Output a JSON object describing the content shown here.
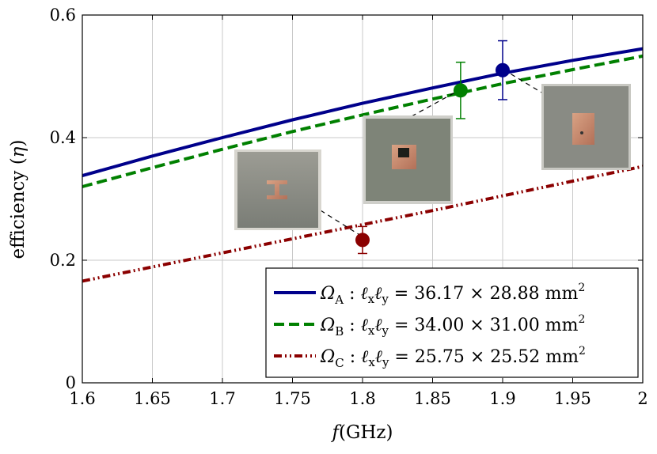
{
  "chart_data": {
    "type": "line",
    "xlabel_italic": "f",
    "xlabel_unit": "(GHz)",
    "ylabel_text": "efficiency (",
    "ylabel_symbol": "η",
    "ylabel_close": ")",
    "xlim": [
      1.6,
      2.0
    ],
    "ylim": [
      0,
      0.6
    ],
    "xticks": [
      1.6,
      1.65,
      1.7,
      1.75,
      1.8,
      1.85,
      1.9,
      1.95,
      2.0
    ],
    "xtick_labels": [
      "1.6",
      "1.65",
      "1.7",
      "1.75",
      "1.8",
      "1.85",
      "1.9",
      "1.95",
      "2"
    ],
    "yticks": [
      0,
      0.2,
      0.4,
      0.6
    ],
    "ytick_labels": [
      "0",
      "0.2",
      "0.4",
      "0.6"
    ],
    "grid": true,
    "legend_position": "bottom-right",
    "series": [
      {
        "name": "ΩA : ℓxℓy = 36.17 × 28.88 mm2",
        "sym": "Ω",
        "sub": "A",
        "lx": "ℓ",
        "lxs": "x",
        "ly": "ℓ",
        "lys": "y",
        "dims": " = 36.17 × 28.88 mm",
        "sup": "2",
        "color": "#00008b",
        "style": "solid",
        "x": [
          1.6,
          1.65,
          1.7,
          1.75,
          1.8,
          1.85,
          1.9,
          1.95,
          2.0
        ],
        "y": [
          0.338,
          0.37,
          0.4,
          0.429,
          0.456,
          0.481,
          0.505,
          0.526,
          0.545
        ]
      },
      {
        "name": "ΩB : ℓxℓy = 34.00 × 31.00 mm2",
        "sym": "Ω",
        "sub": "B",
        "lx": "ℓ",
        "lxs": "x",
        "ly": "ℓ",
        "lys": "y",
        "dims": " = 34.00 × 31.00 mm",
        "sup": "2",
        "color": "#008000",
        "style": "dashed",
        "x": [
          1.6,
          1.65,
          1.7,
          1.75,
          1.8,
          1.85,
          1.9,
          1.95,
          2.0
        ],
        "y": [
          0.32,
          0.351,
          0.381,
          0.41,
          0.437,
          0.463,
          0.488,
          0.511,
          0.533
        ]
      },
      {
        "name": "ΩC : ℓxℓy = 25.75 × 25.52 mm2",
        "sym": "Ω",
        "sub": "C",
        "lx": "ℓ",
        "lxs": "x",
        "ly": "ℓ",
        "lys": "y",
        "dims": " = 25.75 × 25.52 mm",
        "sup": "2",
        "color": "#8b0000",
        "style": "dashdotdot",
        "x": [
          1.6,
          1.65,
          1.7,
          1.75,
          1.8,
          1.85,
          1.9,
          1.95,
          2.0
        ],
        "y": [
          0.166,
          0.189,
          0.212,
          0.235,
          0.258,
          0.281,
          0.305,
          0.329,
          0.353
        ]
      }
    ],
    "measurements": [
      {
        "x": 1.8,
        "y": 0.233,
        "err": 0.022,
        "color": "#8b0000"
      },
      {
        "x": 1.87,
        "y": 0.477,
        "err": 0.046,
        "color": "#008000"
      },
      {
        "x": 1.9,
        "y": 0.51,
        "err": 0.048,
        "color": "#00008b"
      }
    ]
  }
}
